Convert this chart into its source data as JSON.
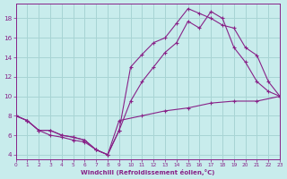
{
  "bg_color": "#c8ecec",
  "grid_color": "#a8d4d4",
  "line_color": "#882288",
  "xlabel": "Windchill (Refroidissement éolien,°C)",
  "xlim": [
    0,
    23
  ],
  "ylim": [
    3.5,
    19.5
  ],
  "yticks": [
    4,
    6,
    8,
    10,
    12,
    14,
    16,
    18
  ],
  "xticks": [
    0,
    1,
    2,
    3,
    4,
    5,
    6,
    7,
    8,
    9,
    10,
    11,
    12,
    13,
    14,
    15,
    16,
    17,
    18,
    19,
    20,
    21,
    22,
    23
  ],
  "line1_x": [
    0,
    1,
    2,
    3,
    4,
    5,
    6,
    7,
    8,
    9,
    10,
    11,
    12,
    13,
    14,
    15,
    16,
    17,
    18,
    19,
    20,
    21,
    22,
    23
  ],
  "line1_y": [
    8,
    7.5,
    6.5,
    6.5,
    6.0,
    5.8,
    5.5,
    4.5,
    4.0,
    6.5,
    9.5,
    11.5,
    13.0,
    14.5,
    15.5,
    17.7,
    17.0,
    18.7,
    18.0,
    15.0,
    13.5,
    11.5,
    10.5,
    10.0
  ],
  "line2_x": [
    0,
    1,
    2,
    3,
    4,
    5,
    6,
    7,
    8,
    9,
    10,
    11,
    12,
    13,
    14,
    15,
    16,
    17,
    18,
    19,
    20,
    21,
    22,
    23
  ],
  "line2_y": [
    8,
    7.5,
    6.5,
    6.5,
    6.0,
    5.8,
    5.5,
    4.5,
    4.0,
    6.5,
    13.0,
    14.3,
    15.5,
    16.0,
    17.5,
    19.0,
    18.5,
    18.0,
    17.3,
    17.0,
    15.0,
    14.2,
    11.5,
    10.0
  ],
  "line3_x": [
    0,
    1,
    2,
    3,
    4,
    5,
    6,
    7,
    8,
    9,
    11,
    13,
    15,
    17,
    19,
    21,
    23
  ],
  "line3_y": [
    8,
    7.5,
    6.5,
    6.0,
    5.8,
    5.5,
    5.3,
    4.5,
    4.0,
    7.5,
    8.0,
    8.5,
    8.8,
    9.3,
    9.5,
    9.5,
    10.0
  ]
}
